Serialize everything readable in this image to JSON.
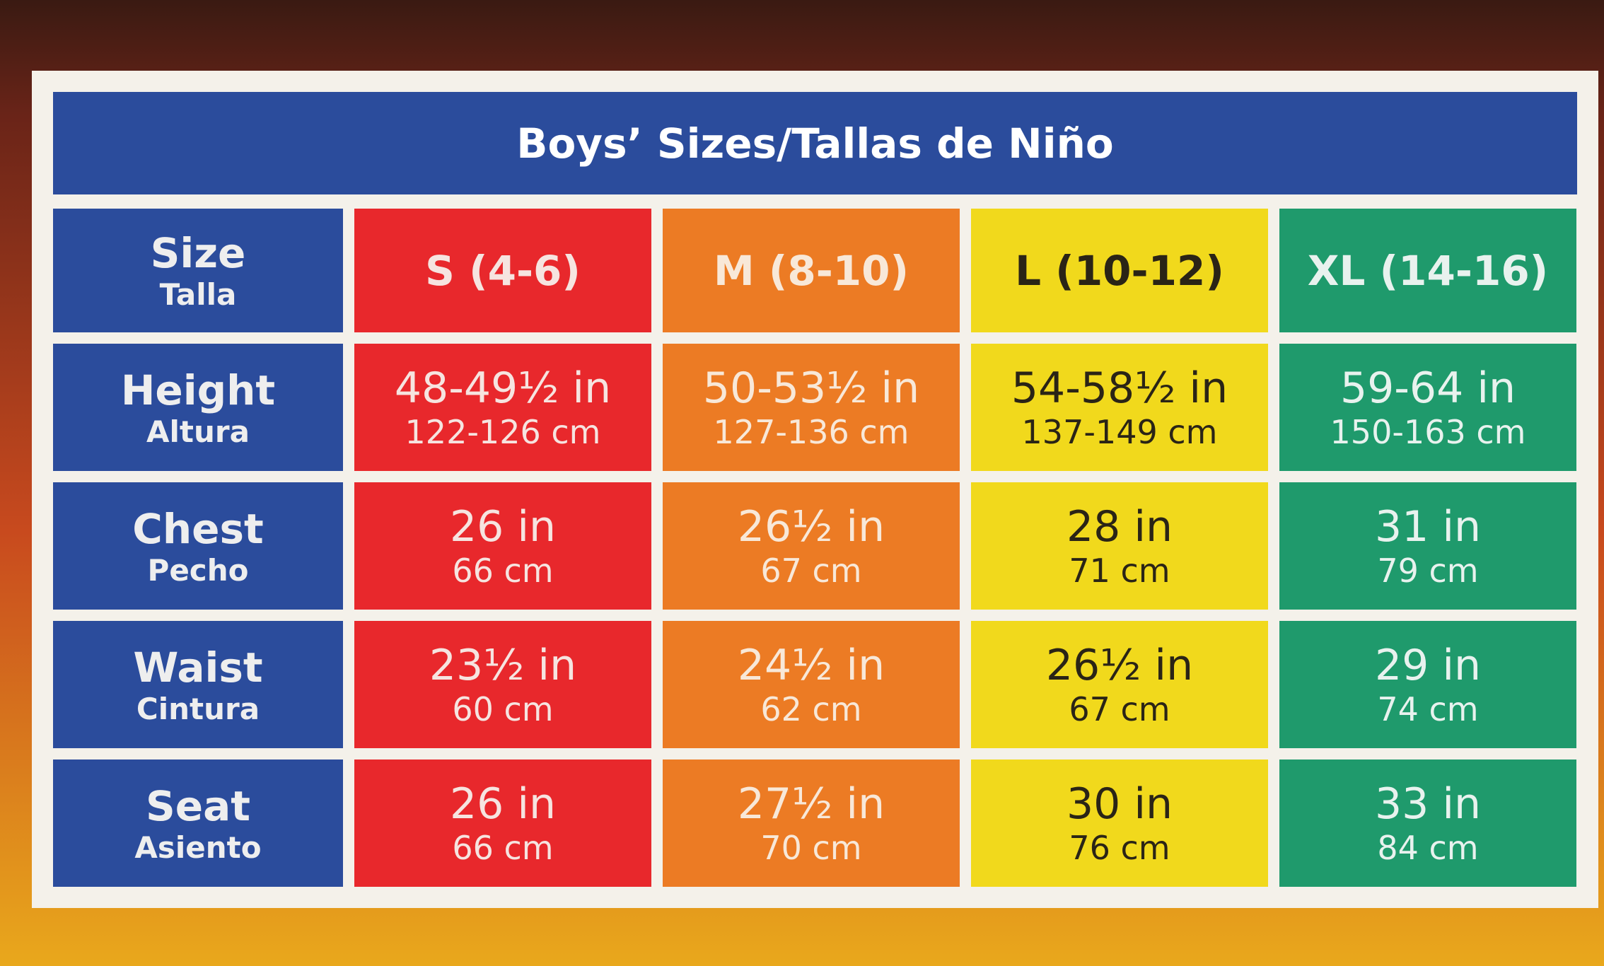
{
  "title": "Boys’ Sizes/Tallas de Niño",
  "table": {
    "header": {
      "label": [
        "Size",
        "Talla"
      ],
      "columns": [
        "S (4-6)",
        "M (8-10)",
        "L (10-12)",
        "XL (14-16)"
      ]
    },
    "rows": [
      {
        "label": [
          "Height",
          "Altura"
        ],
        "cells": [
          [
            "48-49½ in",
            "122-126 cm"
          ],
          [
            "50-53½ in",
            "127-136 cm"
          ],
          [
            "54-58½ in",
            "137-149 cm"
          ],
          [
            "59-64 in",
            "150-163 cm"
          ]
        ]
      },
      {
        "label": [
          "Chest",
          "Pecho"
        ],
        "cells": [
          [
            "26 in",
            "66 cm"
          ],
          [
            "26½ in",
            "67 cm"
          ],
          [
            "28 in",
            "71 cm"
          ],
          [
            "31 in",
            "79 cm"
          ]
        ]
      },
      {
        "label": [
          "Waist",
          "Cintura"
        ],
        "cells": [
          [
            "23½ in",
            "60 cm"
          ],
          [
            "24½ in",
            "62 cm"
          ],
          [
            "26½ in",
            "67 cm"
          ],
          [
            "29 in",
            "74 cm"
          ]
        ]
      },
      {
        "label": [
          "Seat",
          "Asiento"
        ],
        "cells": [
          [
            "26 in",
            "66 cm"
          ],
          [
            "27½ in",
            "70 cm"
          ],
          [
            "30 in",
            "76 cm"
          ],
          [
            "33 in",
            "84 cm"
          ]
        ]
      }
    ]
  }
}
